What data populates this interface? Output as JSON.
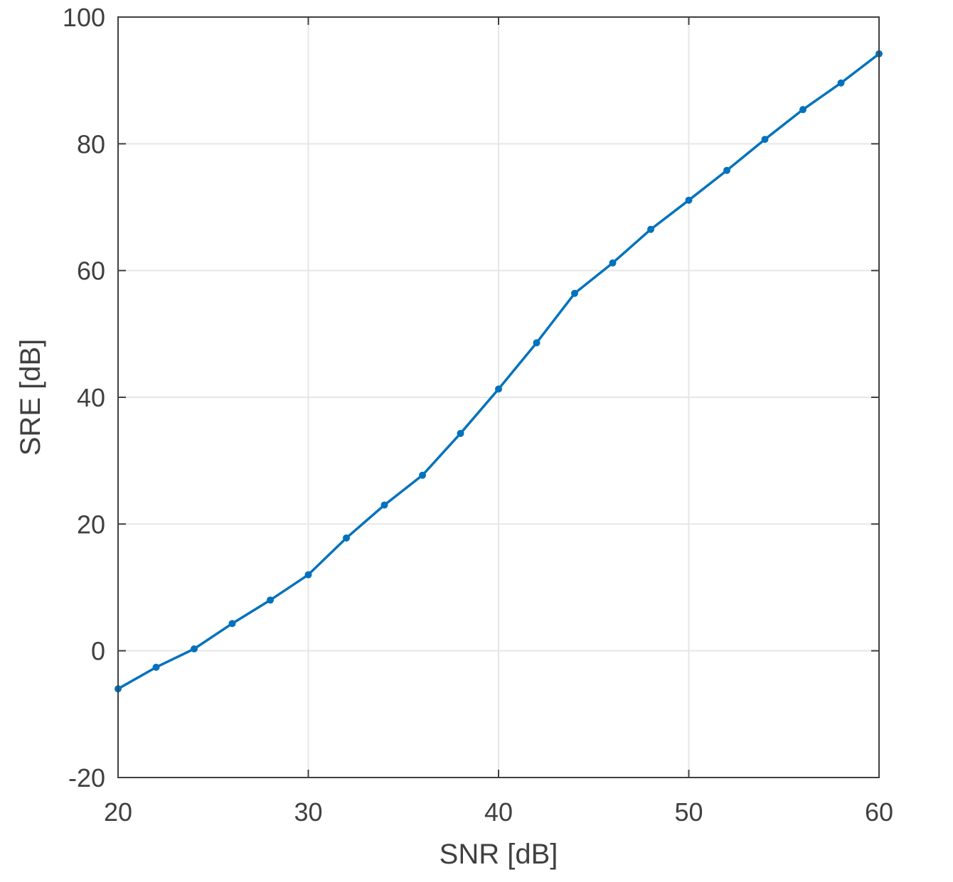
{
  "chart_data": {
    "type": "line",
    "title": "",
    "xlabel": "SNR [dB]",
    "ylabel": "SRE [dB]",
    "xlim": [
      20,
      60
    ],
    "ylim": [
      -20,
      100
    ],
    "xticks": [
      20,
      30,
      40,
      50,
      60
    ],
    "yticks": [
      -20,
      0,
      20,
      40,
      60,
      80,
      100
    ],
    "xtick_labels": [
      "20",
      "30",
      "40",
      "50",
      "60"
    ],
    "ytick_labels": [
      "-20",
      "0",
      "20",
      "40",
      "60",
      "80",
      "100"
    ],
    "grid": true,
    "legend": "none",
    "series": [
      {
        "color": "#0072BD",
        "marker": "dot",
        "x": [
          20,
          22,
          24,
          26,
          28,
          30,
          32,
          34,
          36,
          38,
          40,
          42,
          44,
          46,
          48,
          50,
          52,
          54,
          56,
          58,
          60
        ],
        "y": [
          -6.0,
          -2.6,
          0.3,
          4.3,
          8.0,
          12.0,
          17.8,
          23.0,
          27.7,
          34.3,
          41.3,
          48.6,
          56.4,
          61.2,
          66.5,
          71.1,
          75.8,
          80.7,
          85.4,
          89.6,
          94.2
        ]
      }
    ]
  },
  "colors": {
    "axis": "#404040",
    "grid": "#e6e6e6",
    "line": "#0072BD"
  }
}
